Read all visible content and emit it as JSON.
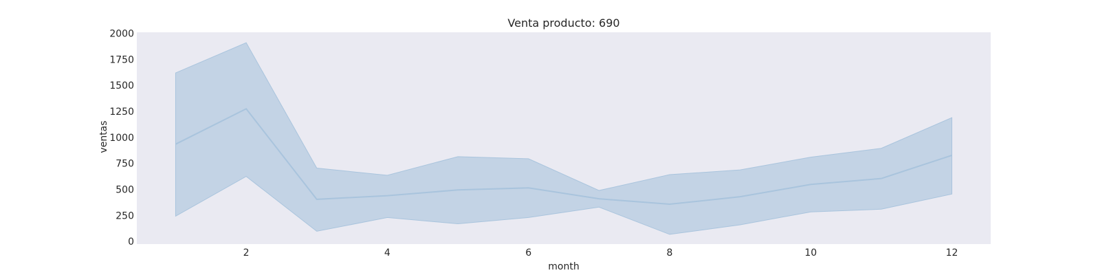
{
  "chart_data": {
    "type": "line",
    "title": "Venta producto: 690",
    "xlabel": "month",
    "ylabel": "ventas",
    "x": [
      1,
      2,
      3,
      4,
      5,
      6,
      7,
      8,
      9,
      10,
      11,
      12
    ],
    "series": [
      {
        "values": [
          935,
          1275,
          405,
          440,
          495,
          515,
          410,
          358,
          430,
          548,
          605,
          828
        ],
        "lower": [
          243,
          625,
          98,
          230,
          170,
          230,
          330,
          68,
          160,
          284,
          310,
          456
        ],
        "upper": [
          1620,
          1910,
          705,
          636,
          815,
          795,
          490,
          642,
          688,
          810,
          895,
          1190
        ]
      }
    ],
    "xticks": [
      2,
      4,
      6,
      8,
      10,
      12
    ],
    "yticks": [
      0,
      250,
      500,
      750,
      1000,
      1250,
      1500,
      1750,
      2000
    ],
    "xlim": [
      0.45,
      12.55
    ],
    "ylim": [
      -25,
      2010
    ],
    "grid": false,
    "colors": {
      "line": "#a9c4dd",
      "band": "#c3d3e5",
      "plot_background": "#eaeaf2"
    }
  }
}
